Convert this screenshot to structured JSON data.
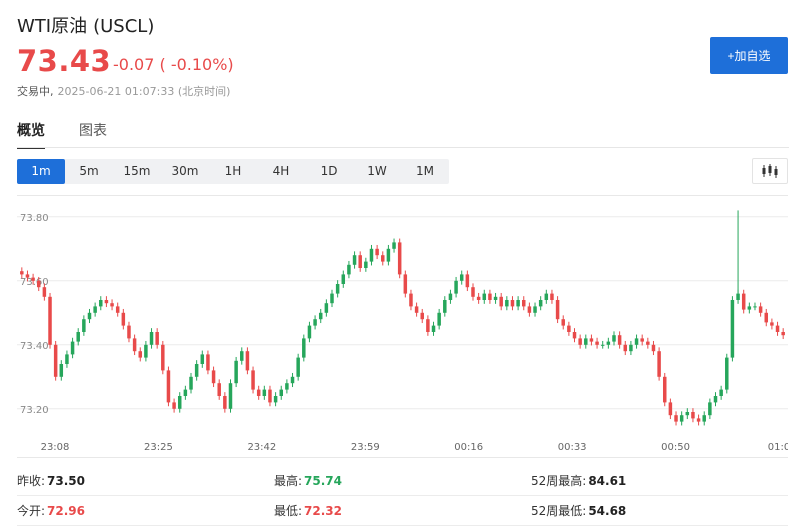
{
  "header": {
    "name": "WTI原油",
    "code": "(USCL)",
    "price": "73.43",
    "change": "-0.07 ( -0.10%)",
    "status": "交易中,",
    "timestamp": "2025-06-21 01:07:33 (北京时间)",
    "add_watchlist": "+加自选"
  },
  "tabs": [
    {
      "label": "概览",
      "active": true
    },
    {
      "label": "图表",
      "active": false
    }
  ],
  "periods": [
    {
      "label": "1m",
      "active": true
    },
    {
      "label": "5m",
      "active": false
    },
    {
      "label": "15m",
      "active": false
    },
    {
      "label": "30m",
      "active": false
    },
    {
      "label": "1H",
      "active": false
    },
    {
      "label": "4H",
      "active": false
    },
    {
      "label": "1D",
      "active": false
    },
    {
      "label": "1W",
      "active": false
    },
    {
      "label": "1M",
      "active": false
    }
  ],
  "chart_type_icon": "candlestick-icon",
  "colors": {
    "up": "#26a65b",
    "down": "#e84a4a",
    "accent": "#1e6fd9"
  },
  "chart_data": {
    "type": "candlestick",
    "ylim": [
      73.14,
      73.84
    ],
    "y_ticks": [
      "73.80",
      "73.60",
      "73.40",
      "73.20"
    ],
    "x_ticks": [
      "23:08",
      "23:25",
      "23:42",
      "23:59",
      "00:16",
      "00:33",
      "00:50",
      "01:0"
    ],
    "closes": [
      73.62,
      73.61,
      73.6,
      73.58,
      73.55,
      73.4,
      73.3,
      73.34,
      73.37,
      73.41,
      73.44,
      73.48,
      73.5,
      73.52,
      73.54,
      73.53,
      73.52,
      73.5,
      73.46,
      73.42,
      73.38,
      73.36,
      73.4,
      73.44,
      73.4,
      73.32,
      73.22,
      73.2,
      73.24,
      73.26,
      73.3,
      73.34,
      73.37,
      73.32,
      73.28,
      73.24,
      73.2,
      73.28,
      73.35,
      73.38,
      73.32,
      73.26,
      73.24,
      73.26,
      73.22,
      73.24,
      73.26,
      73.28,
      73.3,
      73.36,
      73.42,
      73.46,
      73.48,
      73.5,
      73.53,
      73.56,
      73.59,
      73.62,
      73.65,
      73.68,
      73.64,
      73.66,
      73.7,
      73.68,
      73.66,
      73.7,
      73.72,
      73.62,
      73.56,
      73.52,
      73.5,
      73.48,
      73.44,
      73.46,
      73.5,
      73.54,
      73.56,
      73.6,
      73.62,
      73.58,
      73.55,
      73.54,
      73.56,
      73.54,
      73.55,
      73.52,
      73.54,
      73.52,
      73.54,
      73.52,
      73.5,
      73.52,
      73.54,
      73.56,
      73.54,
      73.48,
      73.46,
      73.44,
      73.42,
      73.4,
      73.42,
      73.41,
      73.4,
      73.4,
      73.41,
      73.43,
      73.4,
      73.38,
      73.4,
      73.42,
      73.41,
      73.4,
      73.38,
      73.3,
      73.22,
      73.18,
      73.16,
      73.18,
      73.19,
      73.17,
      73.16,
      73.18,
      73.22,
      73.24,
      73.26,
      73.36,
      73.54,
      73.56,
      73.51,
      73.52,
      73.52,
      73.5,
      73.47,
      73.46,
      73.44,
      73.43
    ],
    "last": 73.43,
    "high_spike": 73.82
  },
  "stats": {
    "prev_close": {
      "label": "昨收:",
      "value": "73.50"
    },
    "high": {
      "label": "最高:",
      "value": "75.74"
    },
    "high_52w": {
      "label": "52周最高:",
      "value": "84.61"
    },
    "open": {
      "label": "今开:",
      "value": "72.96"
    },
    "low": {
      "label": "最低:",
      "value": "72.32"
    },
    "low_52w": {
      "label": "52周最低:",
      "value": "54.68"
    }
  }
}
